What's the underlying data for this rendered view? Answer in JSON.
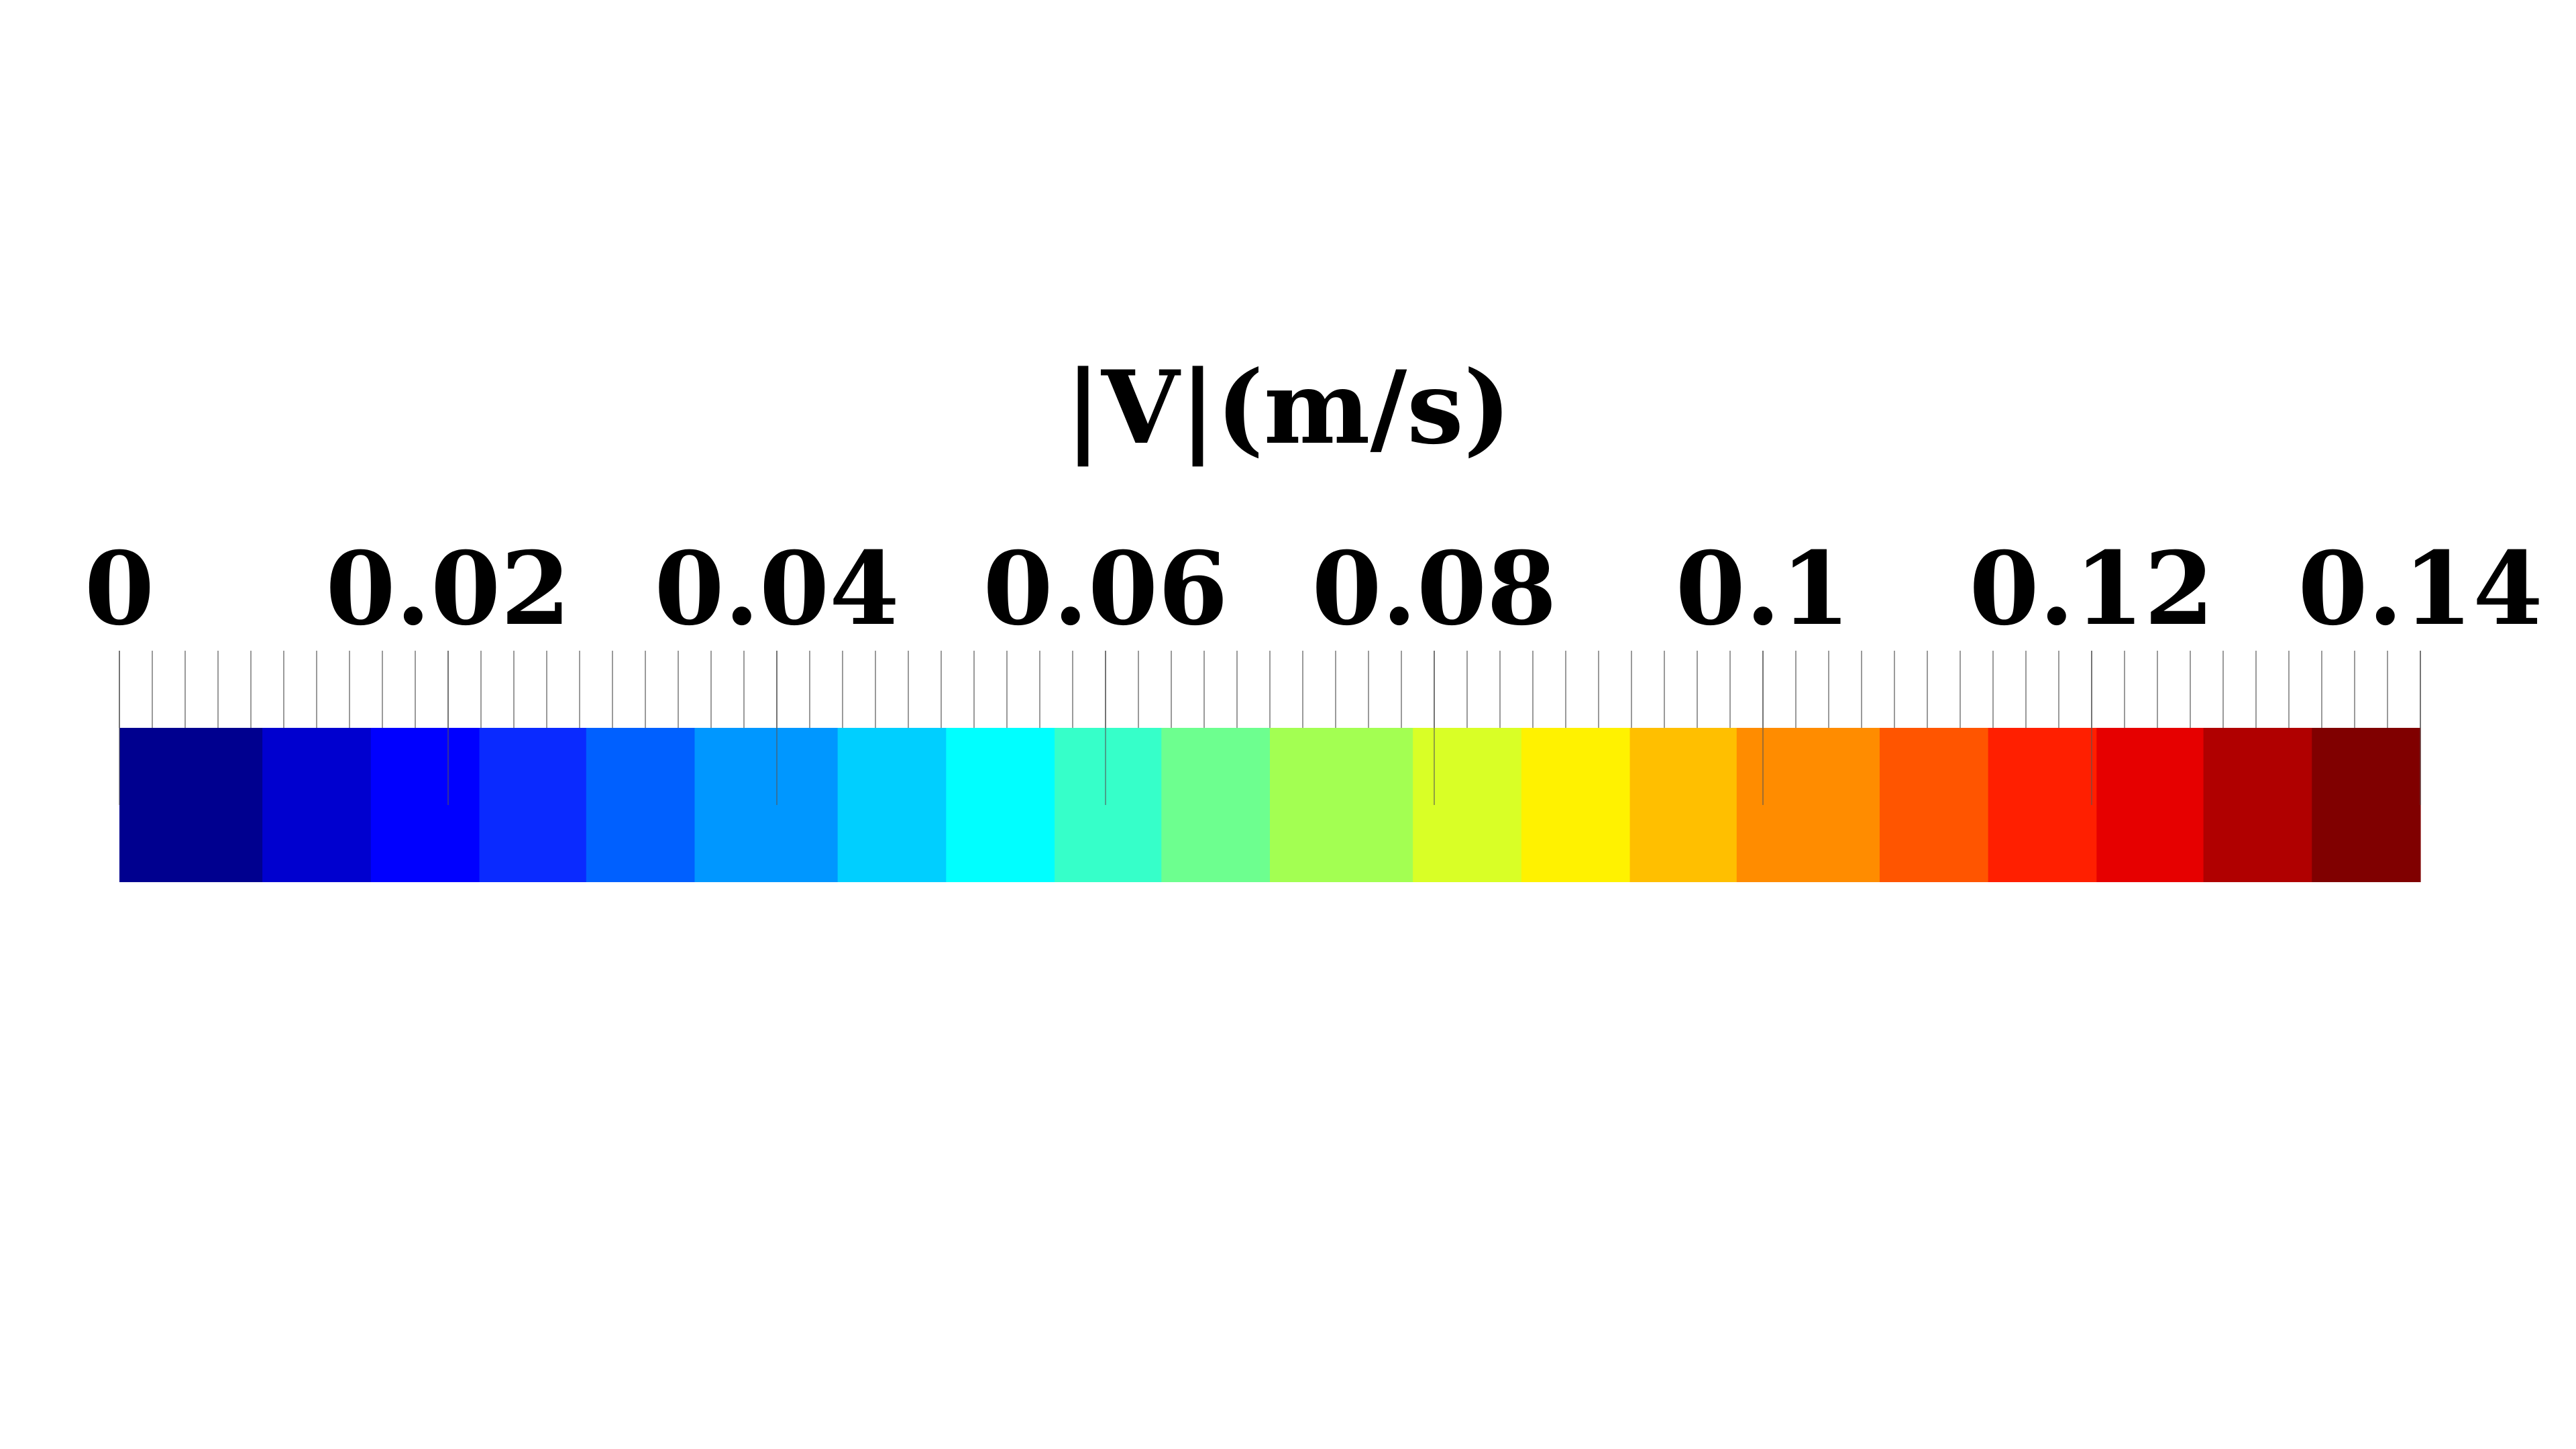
{
  "chart_data": {
    "type": "colorbar",
    "title": "|V|(m/s)",
    "range": [
      0,
      0.14
    ],
    "orientation": "horizontal",
    "major_ticks": [
      0,
      0.02,
      0.04,
      0.06,
      0.08,
      0.1,
      0.12,
      0.14
    ],
    "tick_labels": [
      "0",
      "0.02",
      "0.04",
      "0.06",
      "0.08",
      "0.1",
      "0.12",
      "0.14"
    ],
    "minor_tick_step": 0.002,
    "bins": [
      {
        "from": 0.0,
        "to": 0.0087,
        "color": "#00008f"
      },
      {
        "from": 0.0087,
        "to": 0.0153,
        "color": "#0000cf"
      },
      {
        "from": 0.0153,
        "to": 0.0219,
        "color": "#0000ff"
      },
      {
        "from": 0.0219,
        "to": 0.0284,
        "color": "#0a2aff"
      },
      {
        "from": 0.0284,
        "to": 0.035,
        "color": "#0060ff"
      },
      {
        "from": 0.035,
        "to": 0.0437,
        "color": "#0097ff"
      },
      {
        "from": 0.0437,
        "to": 0.0503,
        "color": "#00cfff"
      },
      {
        "from": 0.0503,
        "to": 0.0569,
        "color": "#00ffff"
      },
      {
        "from": 0.0569,
        "to": 0.0634,
        "color": "#36ffc9"
      },
      {
        "from": 0.0634,
        "to": 0.07,
        "color": "#6dff8f"
      },
      {
        "from": 0.07,
        "to": 0.0787,
        "color": "#a3ff52"
      },
      {
        "from": 0.0787,
        "to": 0.0853,
        "color": "#d9ff26"
      },
      {
        "from": 0.0853,
        "to": 0.0919,
        "color": "#fff200"
      },
      {
        "from": 0.0919,
        "to": 0.0984,
        "color": "#ffbf00"
      },
      {
        "from": 0.0984,
        "to": 0.1071,
        "color": "#ff8c00"
      },
      {
        "from": 0.1071,
        "to": 0.1137,
        "color": "#ff5500"
      },
      {
        "from": 0.1137,
        "to": 0.1203,
        "color": "#ff1f00"
      },
      {
        "from": 0.1203,
        "to": 0.1268,
        "color": "#e60000"
      },
      {
        "from": 0.1268,
        "to": 0.1334,
        "color": "#b00000"
      },
      {
        "from": 0.1334,
        "to": 0.14,
        "color": "#800000"
      }
    ]
  }
}
